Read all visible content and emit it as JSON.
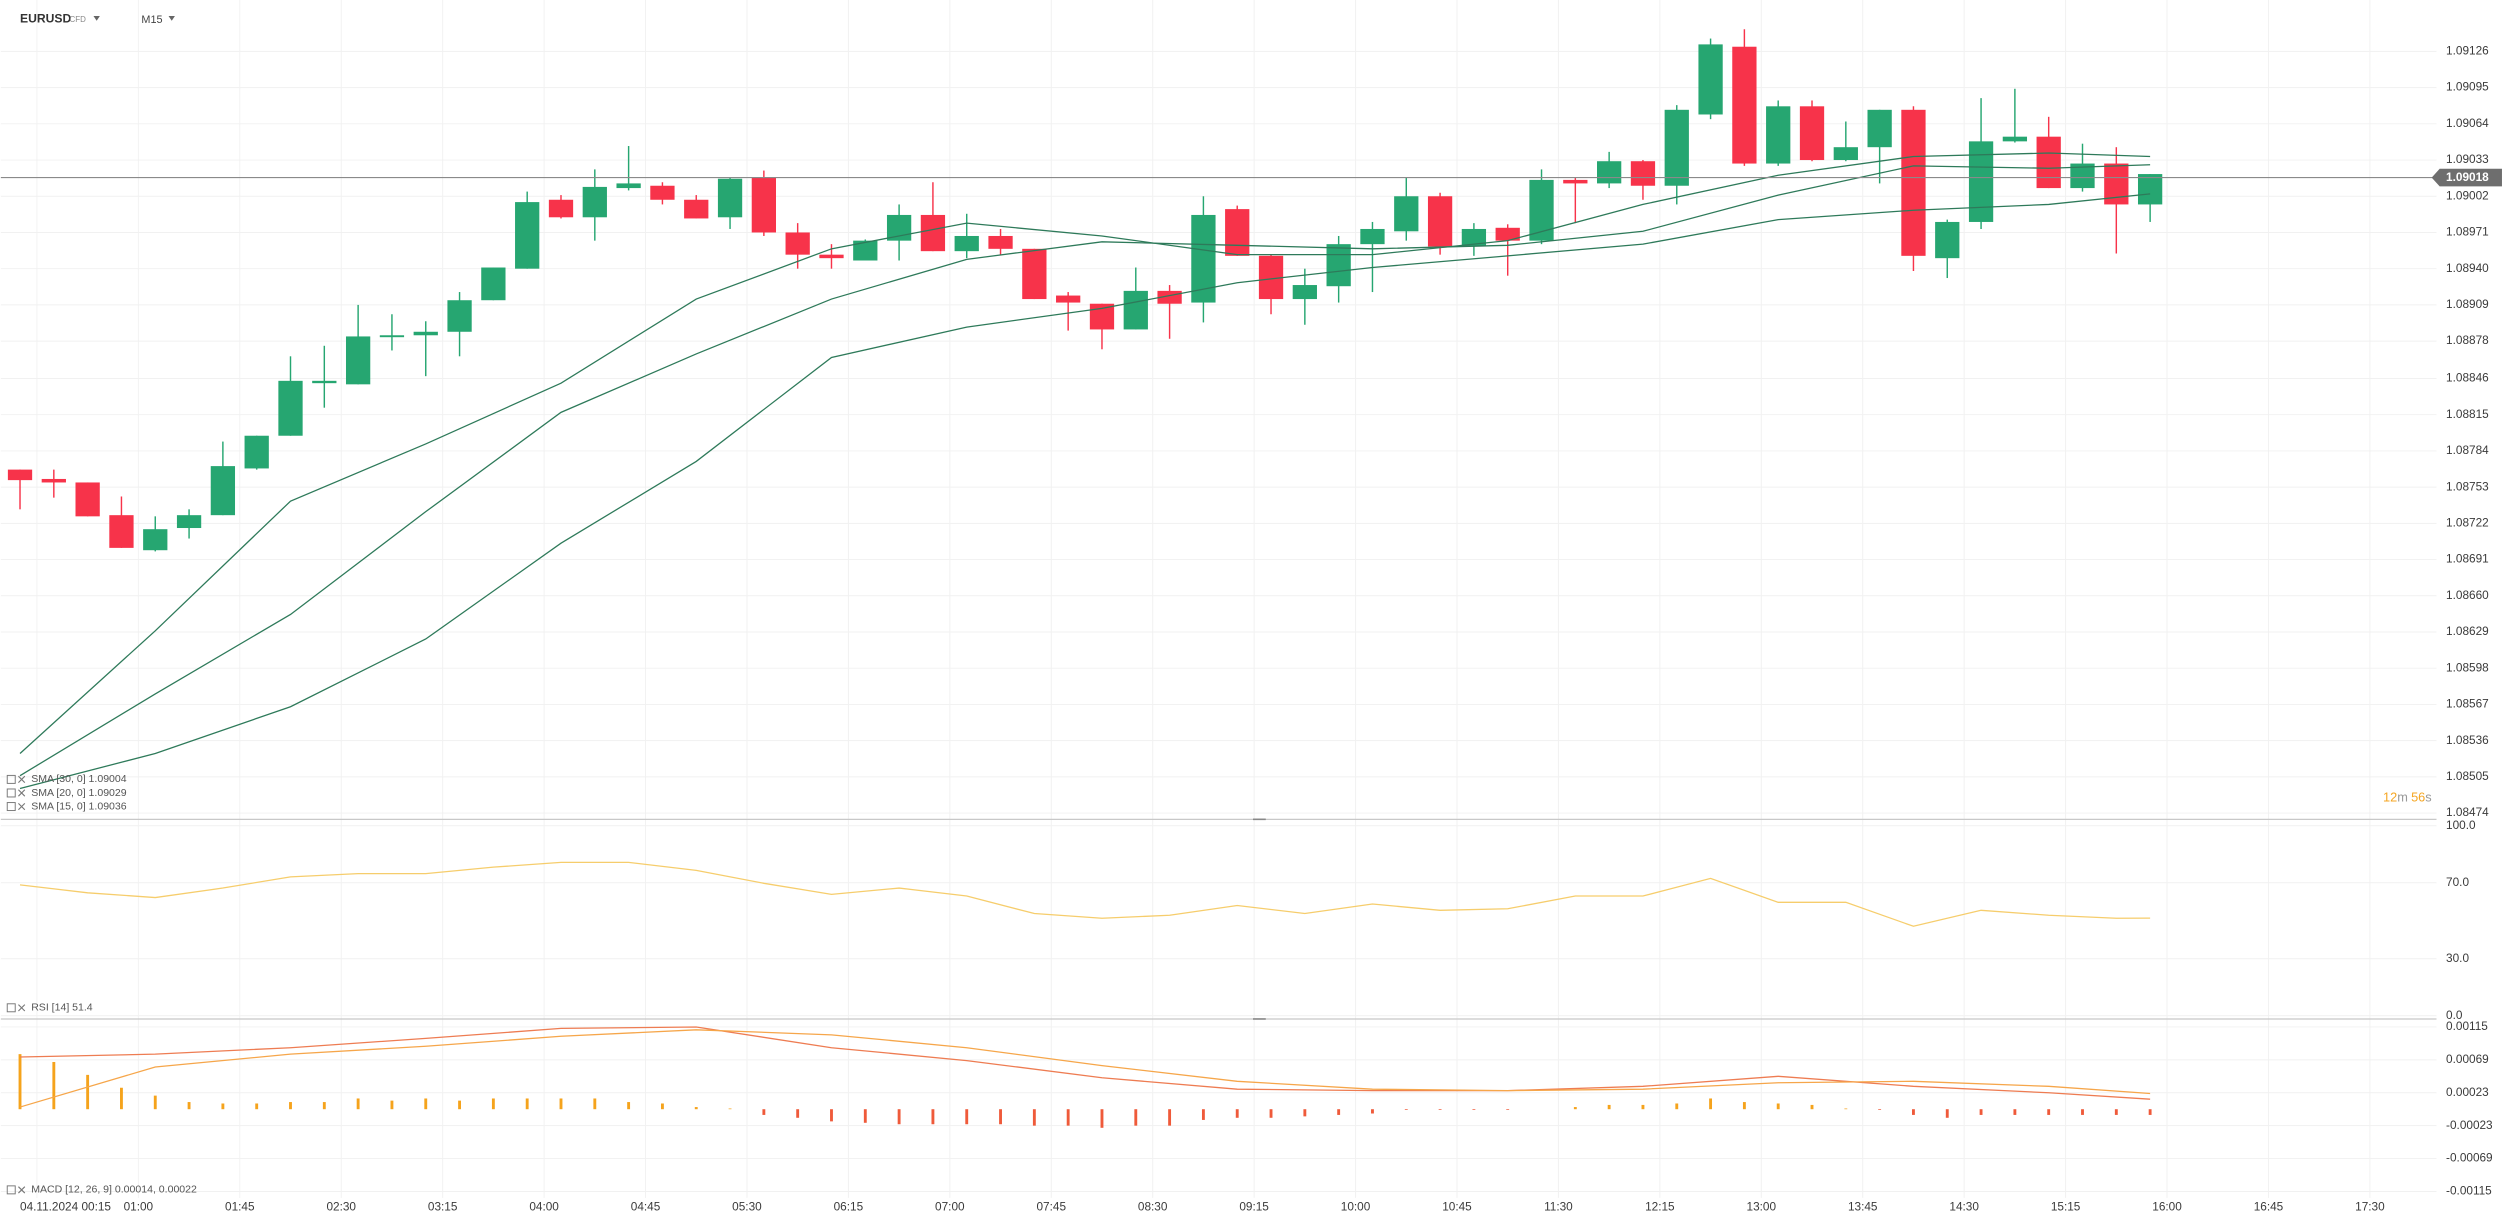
{
  "chart_data": [
    {
      "type": "candlestick",
      "symbol": "EURUSD",
      "instrument_type": "CFD",
      "timeframe": "M15",
      "categories": [
        null,
        "04.11.2024 00:15",
        null,
        null,
        "01:00",
        null,
        null,
        "01:45",
        null,
        null,
        "02:30",
        null,
        null,
        "03:15",
        null,
        null,
        "04:00",
        null,
        null,
        "04:45",
        null,
        null,
        "05:30",
        null,
        null,
        "06:15",
        null,
        null,
        "07:00",
        null,
        null,
        "07:45",
        null,
        null,
        "08:30",
        null,
        null,
        "09:15",
        null,
        null,
        "10:00",
        null,
        null,
        "10:45",
        null,
        null,
        "11:30",
        null,
        null,
        "12:15",
        null,
        null,
        "13:00",
        null,
        null,
        "13:45",
        null,
        null,
        "14:30",
        null,
        null,
        "15:15",
        null,
        null,
        "16:00",
        null,
        null,
        "16:45",
        null,
        null,
        "17:30"
      ],
      "open": [
        1.08768,
        1.0876,
        1.08757,
        1.08729,
        1.08699,
        1.08718,
        1.08729,
        1.08769,
        1.08797,
        1.08842,
        1.08841,
        1.08882,
        1.08883,
        1.08886,
        1.08913,
        1.0894,
        1.08999,
        1.08984,
        1.09009,
        1.09011,
        1.08999,
        1.08984,
        1.09018,
        1.08971,
        1.08952,
        1.08947,
        1.08964,
        1.08986,
        1.08955,
        1.08968,
        1.08957,
        1.08917,
        1.0891,
        1.08888,
        1.08921,
        1.08911,
        1.08991,
        1.08951,
        1.08914,
        1.08925,
        1.08961,
        1.08972,
        1.09002,
        1.08959,
        1.08975,
        1.08964,
        1.09016,
        1.09013,
        1.09032,
        1.09011,
        1.09072,
        1.0913,
        1.0903,
        1.09079,
        1.09033,
        1.09044,
        1.09076,
        1.08949,
        1.0898,
        1.09049,
        1.09053,
        1.09009,
        1.0903,
        1.08995,
        null,
        null,
        null,
        null,
        null,
        null,
        null
      ],
      "high": [
        1.08768,
        1.08768,
        1.08757,
        1.08745,
        1.08728,
        1.08734,
        1.08792,
        1.08797,
        1.08865,
        1.08874,
        1.08909,
        1.08901,
        1.08895,
        1.0892,
        1.08941,
        1.09006,
        1.09003,
        1.09025,
        1.09045,
        1.09014,
        1.09003,
        1.09018,
        1.09024,
        1.08979,
        1.08961,
        1.08965,
        1.08995,
        1.09014,
        1.08987,
        1.08974,
        1.08957,
        1.0892,
        1.0891,
        1.08941,
        1.08926,
        1.09002,
        1.08994,
        1.08952,
        1.0894,
        1.08968,
        1.0898,
        1.09018,
        1.09005,
        1.08979,
        1.08978,
        1.09025,
        1.09018,
        1.0904,
        1.09033,
        1.0908,
        1.09137,
        1.09145,
        1.09084,
        1.09084,
        1.09066,
        1.09076,
        1.09079,
        1.08982,
        1.09086,
        1.09094,
        1.0907,
        1.09047,
        1.09044,
        1.09021,
        null,
        null,
        null,
        null,
        null,
        null,
        null
      ],
      "low": [
        1.08734,
        1.08744,
        1.08728,
        1.08701,
        1.08698,
        1.08709,
        1.08729,
        1.08768,
        1.08797,
        1.08821,
        1.08841,
        1.0887,
        1.08848,
        1.08865,
        1.08913,
        1.0894,
        1.08983,
        1.08964,
        1.09007,
        1.08995,
        1.08983,
        1.08974,
        1.08968,
        1.0894,
        1.0894,
        1.08947,
        1.08947,
        1.08955,
        1.08949,
        1.08952,
        1.08914,
        1.08887,
        1.08871,
        1.08888,
        1.0888,
        1.08894,
        1.08951,
        1.08901,
        1.08892,
        1.08911,
        1.0892,
        1.08964,
        1.08952,
        1.08951,
        1.08934,
        1.08961,
        1.08979,
        1.09009,
        1.08999,
        1.08995,
        1.09068,
        1.09028,
        1.09028,
        1.09032,
        1.09032,
        1.09013,
        1.08938,
        1.08932,
        1.08974,
        1.09048,
        1.09009,
        1.09006,
        1.08953,
        1.0898,
        null,
        null,
        null,
        null,
        null,
        null,
        null
      ],
      "close": [
        1.08759,
        1.08757,
        1.08728,
        1.08701,
        1.08717,
        1.08729,
        1.08771,
        1.08797,
        1.08844,
        1.08844,
        1.08882,
        1.08883,
        1.08886,
        1.08913,
        1.08941,
        1.08997,
        1.08984,
        1.0901,
        1.09013,
        1.08999,
        1.08983,
        1.09017,
        1.08971,
        1.08952,
        1.08949,
        1.08964,
        1.08986,
        1.08955,
        1.08968,
        1.08957,
        1.08914,
        1.08911,
        1.08888,
        1.08921,
        1.0891,
        1.08986,
        1.08951,
        1.08914,
        1.08926,
        1.08961,
        1.08974,
        1.09002,
        1.08959,
        1.08974,
        1.08964,
        1.09016,
        1.09013,
        1.09032,
        1.09011,
        1.09076,
        1.09132,
        1.0903,
        1.09079,
        1.09033,
        1.09044,
        1.09076,
        1.08951,
        1.0898,
        1.09049,
        1.09053,
        1.09009,
        1.0903,
        1.08995,
        1.09021,
        null,
        null,
        null,
        null,
        null,
        null,
        null
      ],
      "up_color": "#26a671",
      "down_color": "#f7334a",
      "ylim": [
        1.0847,
        1.0917
      ],
      "yticks": [
        1.09126,
        1.09095,
        1.09064,
        1.09033,
        1.09002,
        1.08971,
        {
          "value": 1.0894,
          "label": "1.08940"
        },
        1.08909,
        1.08878,
        1.08846,
        1.08815,
        1.08784,
        1.08753,
        1.08722,
        1.08691,
        {
          "value": 1.0866,
          "label": "1.08660"
        },
        1.08629,
        1.08598,
        1.08567,
        1.08536,
        1.08505,
        1.08474
      ],
      "grid": true,
      "current_price": 1.09018,
      "series": [
        {
          "name": "SMA [30, 0] 1.09004",
          "color": "#2e7a5a",
          "x": [
            0,
            4,
            8,
            12,
            16,
            20,
            24,
            28,
            32,
            36,
            40,
            44,
            48,
            52,
            56,
            60,
            63
          ],
          "values": [
            1.08495,
            1.08525,
            1.08565,
            1.08623,
            1.08705,
            1.08775,
            1.08864,
            1.0889,
            1.08906,
            1.08928,
            1.08941,
            1.08951,
            1.08961,
            1.08982,
            1.0899,
            1.08995,
            1.09004
          ]
        },
        {
          "name": "SMA [20, 0] 1.09029",
          "color": "#2e7a5a",
          "x": [
            0,
            4,
            8,
            12,
            16,
            20,
            24,
            28,
            32,
            36,
            40,
            44,
            48,
            52,
            56,
            60,
            63
          ],
          "values": [
            1.08506,
            1.08576,
            1.08644,
            1.08732,
            1.08817,
            1.08867,
            1.08914,
            1.08948,
            1.08963,
            1.0896,
            1.08957,
            1.0896,
            1.08972,
            1.09003,
            1.09028,
            1.09026,
            1.09029
          ]
        },
        {
          "name": "SMA [15, 0] 1.09036",
          "color": "#2e7a5a",
          "x": [
            0,
            4,
            8,
            12,
            16,
            20,
            24,
            28,
            32,
            36,
            40,
            44,
            48,
            52,
            56,
            60,
            63
          ],
          "values": [
            1.08525,
            1.0863,
            1.08741,
            1.0879,
            1.08842,
            1.08914,
            1.08957,
            1.08979,
            1.08968,
            1.08952,
            1.08952,
            1.08964,
            1.08995,
            1.0902,
            1.09036,
            1.09039,
            1.09036
          ]
        }
      ],
      "countdown": {
        "minutes": "12",
        "minutes_unit": "m",
        "seconds": "56",
        "seconds_unit": "s"
      }
    },
    {
      "type": "line",
      "title": "RSI [14] 51.4",
      "color": "#f6cd6c",
      "x": [
        0,
        2,
        4,
        6,
        8,
        10,
        12,
        14,
        16,
        18,
        20,
        22,
        24,
        26,
        28,
        30,
        32,
        34,
        36,
        38,
        40,
        42,
        44,
        46,
        48,
        50,
        52,
        54,
        56,
        58,
        60,
        62,
        63
      ],
      "values": [
        68.9,
        64.7,
        62.2,
        67.2,
        73.1,
        74.8,
        74.8,
        78.2,
        80.7,
        80.7,
        76.5,
        69.7,
        63.9,
        67.2,
        63.0,
        53.8,
        51.3,
        52.9,
        58.0,
        53.8,
        58.8,
        55.5,
        56.3,
        63.0,
        63.0,
        72.3,
        59.7,
        59.7,
        47.1,
        55.5,
        52.9,
        51.3,
        51.4
      ],
      "ylim": [
        0,
        100
      ],
      "yticks": [
        {
          "value": 100,
          "label": "100.0"
        },
        {
          "value": 70,
          "label": "70.0"
        },
        {
          "value": 30,
          "label": "30.0"
        },
        {
          "value": 0,
          "label": "0.0"
        }
      ]
    },
    {
      "type": "macd",
      "title": "MACD [12, 26, 9] 0.00014, 0.00022",
      "values": [
        0.00077,
        0.00066,
        0.00048,
        0.0003,
        0.00019,
        0.0001,
        8e-05,
        8e-05,
        0.0001,
        0.0001,
        0.00015,
        0.00012,
        0.00015,
        0.00012,
        0.00015,
        0.00015,
        0.00015,
        0.00015,
        0.0001,
        8e-05,
        3e-05,
        1e-05,
        -8e-05,
        -0.00012,
        -0.00017,
        -0.00019,
        -0.00021,
        -0.00021,
        -0.00021,
        -0.00021,
        -0.00023,
        -0.00023,
        -0.00026,
        -0.00023,
        -0.00023,
        -0.00015,
        -0.00012,
        -0.00012,
        -0.0001,
        -8e-05,
        -6e-05,
        -1e-05,
        -1e-05,
        -1e-05,
        -1e-05,
        0,
        3e-05,
        6e-05,
        6e-05,
        8e-05,
        0.00015,
        0.0001,
        8e-05,
        6e-05,
        1e-05,
        -1e-05,
        -8e-05,
        -0.00012,
        -8e-05,
        -8e-05,
        -8e-05,
        -8e-05,
        -8e-05,
        -8e-05
      ],
      "up_color": "#f5a31c",
      "down_color": "#ef5a3a",
      "series": [
        {
          "color": "#ee7c52",
          "x": [
            0,
            4,
            8,
            12,
            16,
            20,
            24,
            28,
            32,
            36,
            40,
            44,
            48,
            52,
            56,
            60,
            63
          ],
          "values": [
            0.00073,
            0.00077,
            0.00086,
            0.00099,
            0.00113,
            0.00115,
            0.00086,
            0.00068,
            0.00044,
            0.00028,
            0.00026,
            0.00026,
            0.00032,
            0.00046,
            0.00032,
            0.00023,
            0.00014
          ]
        },
        {
          "color": "#f6a64a",
          "x": [
            0,
            4,
            8,
            12,
            16,
            20,
            24,
            28,
            32,
            36,
            40,
            44,
            48,
            52,
            56,
            60,
            63
          ],
          "values": [
            3e-05,
            0.00059,
            0.00077,
            0.00088,
            0.00102,
            0.00111,
            0.00104,
            0.00086,
            0.00061,
            0.00039,
            0.00028,
            0.00026,
            0.00028,
            0.00037,
            0.00039,
            0.00032,
            0.00022
          ]
        }
      ],
      "ylim": [
        -0.00115,
        0.00115
      ],
      "yticks": [
        0.00115,
        0.00069,
        0.00023,
        -0.00023,
        -0.00069,
        -0.00115
      ]
    }
  ]
}
